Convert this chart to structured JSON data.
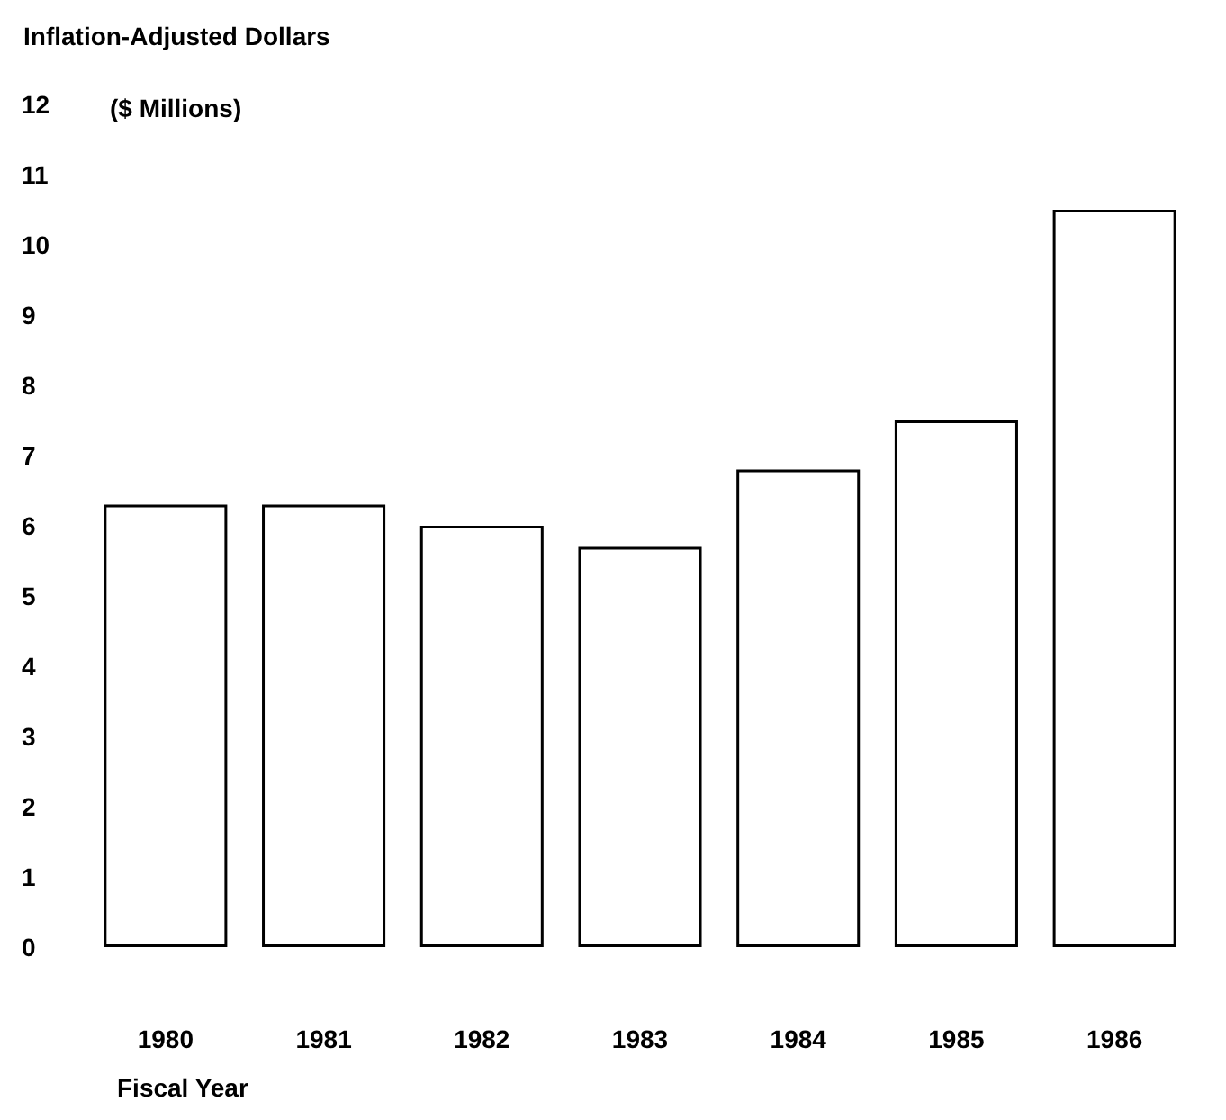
{
  "chart_data": {
    "type": "bar",
    "title": "Inflation-Adjusted Dollars",
    "ylabel": "($ Millions)",
    "xlabel": "Fiscal Year",
    "categories": [
      "1980",
      "1981",
      "1982",
      "1983",
      "1984",
      "1985",
      "1986"
    ],
    "values": [
      6.3,
      6.3,
      6.0,
      5.7,
      6.8,
      7.5,
      10.5
    ],
    "color": "#ffffff",
    "ylim": [
      0,
      12
    ],
    "yticks": [
      0,
      1,
      2,
      3,
      4,
      5,
      6,
      7,
      8,
      9,
      10,
      11,
      12
    ]
  }
}
